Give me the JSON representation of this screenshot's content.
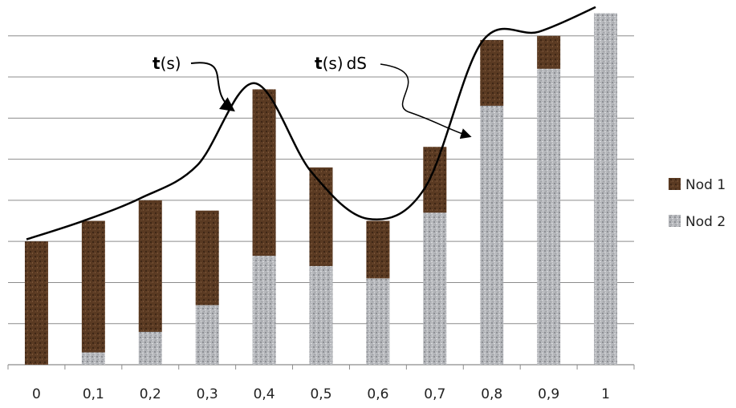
{
  "chart_data": {
    "type": "bar",
    "stacked": true,
    "categories": [
      "0",
      "0,1",
      "0,2",
      "0,3",
      "0,4",
      "0,5",
      "0,6",
      "0,7",
      "0,8",
      "0,9",
      "1"
    ],
    "series": [
      {
        "name": "Nod 2",
        "values": [
          0,
          0.3,
          0.8,
          1.45,
          2.65,
          2.4,
          2.1,
          3.7,
          6.3,
          7.2,
          8.55
        ]
      },
      {
        "name": "Nod 1",
        "values": [
          3.0,
          3.2,
          3.2,
          2.3,
          4.05,
          2.4,
          1.4,
          1.6,
          1.6,
          0.8,
          0
        ]
      }
    ],
    "ylim": [
      0,
      8.6
    ],
    "y_gridlines": [
      1,
      2,
      3,
      4,
      5,
      6,
      7,
      8
    ],
    "y_tick_labels_shown": false,
    "grid": true,
    "legend_position": "right",
    "series_colors": {
      "Nod 1": "#5a3a22",
      "Nod 2": "#b5b7bb"
    },
    "curve": {
      "label_bold": "t",
      "label_rest": "(s)",
      "points": [
        [
          0,
          3.05
        ],
        [
          0.1,
          3.5
        ],
        [
          0.2,
          4.05
        ],
        [
          0.3,
          4.85
        ],
        [
          0.4,
          6.85
        ],
        [
          0.5,
          4.7
        ],
        [
          0.6,
          3.55
        ],
        [
          0.7,
          4.3
        ],
        [
          0.8,
          7.85
        ],
        [
          0.9,
          8.1
        ],
        [
          1,
          8.7
        ]
      ]
    },
    "annotation_tds": {
      "label_bold": "t",
      "label_rest": "(s) dS"
    }
  }
}
